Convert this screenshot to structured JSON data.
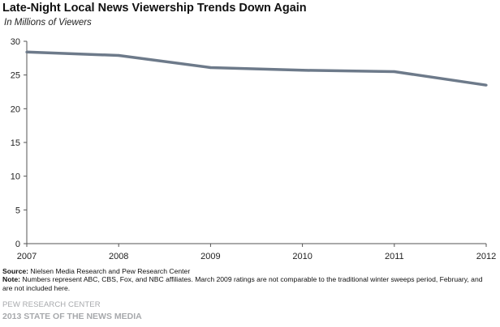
{
  "chart_data": {
    "type": "line",
    "title": "Late-Night Local News Viewership Trends Down Again",
    "subtitle": "In Millions of Viewers",
    "xlabel": "",
    "ylabel": "",
    "x": [
      "2007",
      "2008",
      "2009",
      "2010",
      "2011",
      "2012"
    ],
    "series": [
      {
        "values": [
          28.4,
          27.9,
          26.1,
          25.7,
          25.5,
          23.5
        ]
      }
    ],
    "ylim": [
      0,
      30
    ],
    "yticks": [
      0,
      5,
      10,
      15,
      20,
      25,
      30
    ],
    "grid": false,
    "line_color": "#6d7a8a"
  },
  "footer": {
    "source_label": "Source:",
    "source_text": "Nielsen Media Research and Pew Research Center",
    "note_label": "Note:",
    "note_text": "Numbers represent ABC, CBS, Fox, and NBC affiliates. March 2009 ratings are not comparable to the traditional winter sweeps period, February, and are not included here.",
    "organization": "PEW RESEARCH CENTER",
    "report": "2013 STATE OF THE NEWS MEDIA"
  }
}
